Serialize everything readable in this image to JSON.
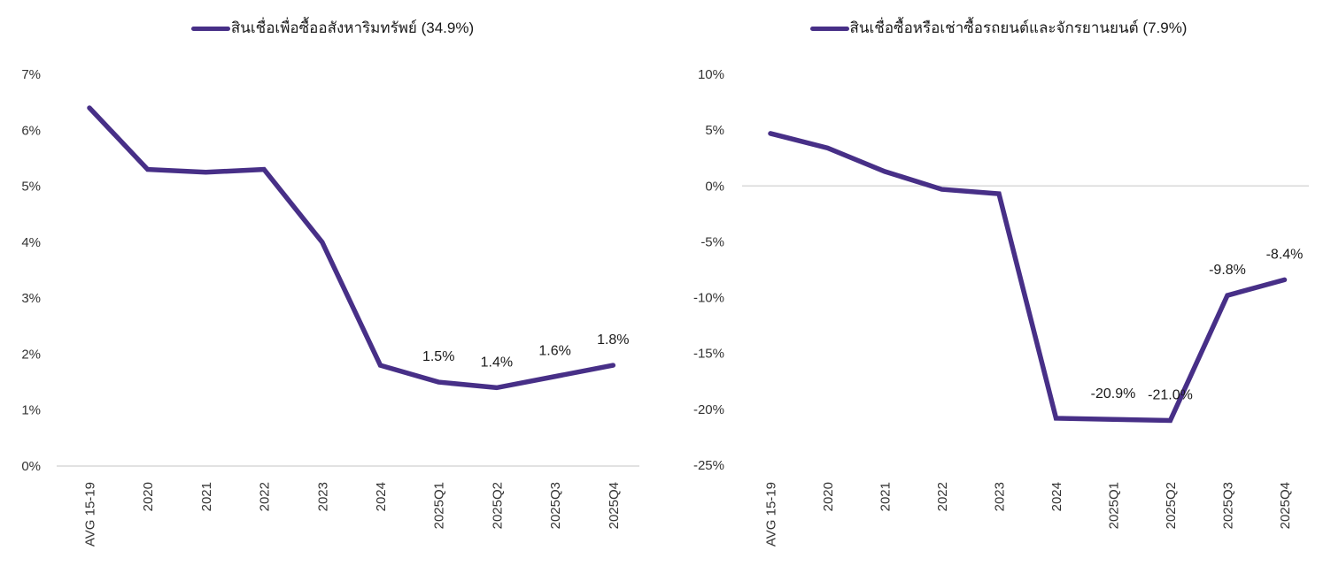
{
  "styles": {
    "line_color": "#472f87",
    "axis_line_color": "#d9d9d9",
    "tick_text_color": "#333333",
    "label_text_color": "#1a1a1a",
    "background_color": "#ffffff"
  },
  "chart_data": [
    {
      "type": "line",
      "series_name": "สินเชื่อเพื่อซื้ออสังหาริมทรัพย์ (34.9%)",
      "categories": [
        "AVG 15-19",
        "2020",
        "2021",
        "2022",
        "2023",
        "2024",
        "2025Q1",
        "2025Q2",
        "2025Q3",
        "2025Q4"
      ],
      "values": [
        6.4,
        5.3,
        5.25,
        5.3,
        4.0,
        1.8,
        1.5,
        1.4,
        1.6,
        1.8
      ],
      "point_labels": [
        "",
        "",
        "",
        "",
        "",
        "",
        "1.5%",
        "1.4%",
        "1.6%",
        "1.8%"
      ],
      "title": "",
      "xlabel": "",
      "ylabel": "",
      "ylim": [
        0,
        7
      ],
      "ytick_step": 1,
      "ytick_suffix": "%",
      "legend_position": "top-center",
      "grid": "zero-baseline-only",
      "x_tick_rotation": -90
    },
    {
      "type": "line",
      "series_name": "สินเชื่อซื้อหรือเช่าซื้อรถยนต์และจักรยานยนต์ (7.9%)",
      "categories": [
        "AVG 15-19",
        "2020",
        "2021",
        "2022",
        "2023",
        "2024",
        "2025Q1",
        "2025Q2",
        "2025Q3",
        "2025Q4"
      ],
      "values": [
        4.7,
        3.4,
        1.3,
        -0.3,
        -0.7,
        -20.8,
        -20.9,
        -21.0,
        -9.8,
        -8.4
      ],
      "point_labels": [
        "",
        "",
        "",
        "",
        "",
        "",
        "-20.9%",
        "-21.0%",
        "-9.8%",
        "-8.4%"
      ],
      "title": "",
      "xlabel": "",
      "ylabel": "",
      "ylim": [
        -25,
        10
      ],
      "ytick_step": 5,
      "ytick_suffix": "%",
      "legend_position": "top-center",
      "grid": "zero-baseline-only",
      "x_tick_rotation": -90
    }
  ]
}
